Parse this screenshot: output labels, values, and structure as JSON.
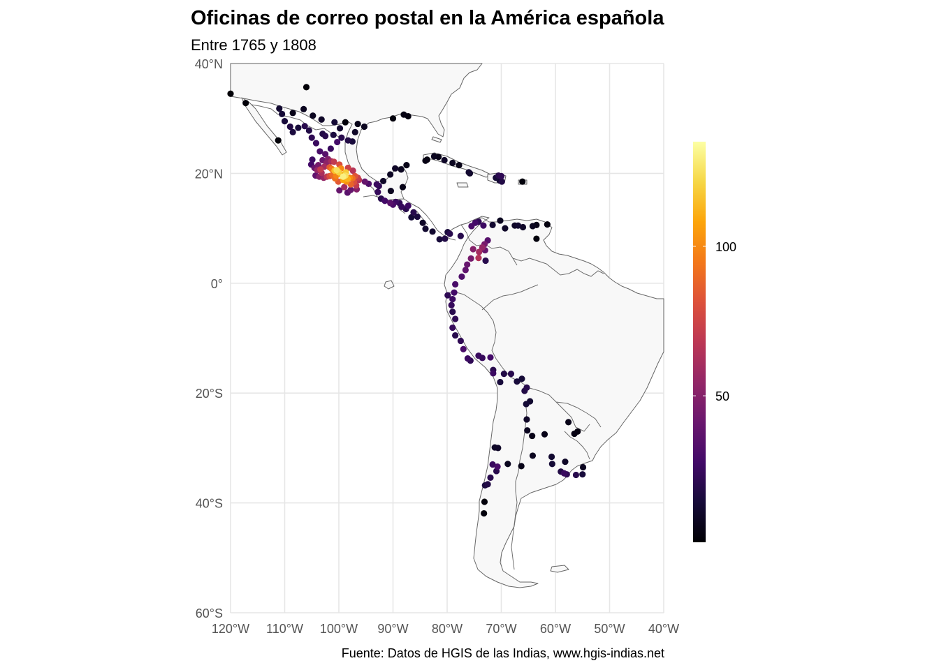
{
  "chart_data": {
    "type": "scatter",
    "title": "Oficinas de correo postal en la América española",
    "subtitle": "Entre 1765 y 1808",
    "caption": "Fuente: Datos de HGIS de las Indias, www.hgis-indias.net",
    "xlim": [
      -120,
      -40
    ],
    "ylim": [
      -60,
      40
    ],
    "x_ticks": [
      -120,
      -110,
      -100,
      -90,
      -80,
      -70,
      -60,
      -50,
      -40
    ],
    "x_tick_labels": [
      "120°W",
      "110°W",
      "100°W",
      "90°W",
      "80°W",
      "70°W",
      "60°W",
      "50°W",
      "40°W"
    ],
    "y_ticks": [
      40,
      20,
      0,
      -20,
      -40,
      -60
    ],
    "y_tick_labels": [
      "40°N",
      "20°N",
      "0°",
      "20°S",
      "40°S",
      "60°S"
    ],
    "grid": true,
    "colorscale": "inferno",
    "color_range": [
      1,
      135
    ],
    "legend_ticks": [
      50,
      100
    ],
    "legend_tick_labels": [
      "50",
      "100"
    ],
    "legend_position": "right",
    "points": [
      [
        -120.0,
        34.5,
        2
      ],
      [
        -117.2,
        32.8,
        2
      ],
      [
        -106.0,
        35.7,
        2
      ],
      [
        -111.2,
        26.0,
        2
      ],
      [
        -111.0,
        31.8,
        12
      ],
      [
        -110.5,
        30.8,
        14
      ],
      [
        -110.0,
        29.5,
        15
      ],
      [
        -109.0,
        28.5,
        18
      ],
      [
        -108.5,
        27.5,
        16
      ],
      [
        -107.5,
        28.3,
        15
      ],
      [
        -106.3,
        28.6,
        20
      ],
      [
        -105.5,
        27.8,
        18
      ],
      [
        -105.0,
        26.5,
        22
      ],
      [
        -104.2,
        25.5,
        25
      ],
      [
        -103.5,
        24.0,
        30
      ],
      [
        -102.5,
        23.5,
        35
      ],
      [
        -101.5,
        24.5,
        25
      ],
      [
        -100.3,
        25.7,
        28
      ],
      [
        -99.5,
        26.5,
        20
      ],
      [
        -98.3,
        26.0,
        18
      ],
      [
        -97.5,
        25.8,
        15
      ],
      [
        -101.0,
        27.0,
        16
      ],
      [
        -100.8,
        29.3,
        14
      ],
      [
        -99.8,
        28.2,
        12
      ],
      [
        -98.8,
        29.3,
        3
      ],
      [
        -104.8,
        30.5,
        8
      ],
      [
        -103.2,
        29.8,
        10
      ],
      [
        -108.5,
        31.0,
        6
      ],
      [
        -106.5,
        31.7,
        8
      ],
      [
        -103.0,
        27.2,
        18
      ],
      [
        -102.5,
        26.8,
        20
      ],
      [
        -96.5,
        29.0,
        6
      ],
      [
        -95.3,
        28.5,
        8
      ],
      [
        -97.0,
        27.5,
        10
      ],
      [
        -90.0,
        30.0,
        3
      ],
      [
        -88.0,
        30.7,
        5
      ],
      [
        -87.2,
        30.4,
        4
      ],
      [
        -104.5,
        21.0,
        40
      ],
      [
        -104.0,
        20.6,
        55
      ],
      [
        -103.4,
        20.7,
        70
      ],
      [
        -102.7,
        21.2,
        60
      ],
      [
        -102.3,
        21.9,
        52
      ],
      [
        -101.7,
        21.1,
        85
      ],
      [
        -101.3,
        20.8,
        95
      ],
      [
        -100.8,
        20.5,
        115
      ],
      [
        -100.4,
        20.6,
        125
      ],
      [
        -100.0,
        20.2,
        120
      ],
      [
        -99.6,
        19.8,
        110
      ],
      [
        -99.2,
        19.4,
        130
      ],
      [
        -98.8,
        19.6,
        125
      ],
      [
        -98.4,
        19.0,
        112
      ],
      [
        -98.0,
        19.2,
        100
      ],
      [
        -97.5,
        19.1,
        92
      ],
      [
        -97.0,
        19.5,
        82
      ],
      [
        -96.5,
        19.2,
        72
      ],
      [
        -96.3,
        18.8,
        65
      ],
      [
        -97.2,
        18.4,
        80
      ],
      [
        -96.8,
        17.8,
        70
      ],
      [
        -97.8,
        18.0,
        88
      ],
      [
        -98.6,
        18.5,
        102
      ],
      [
        -99.2,
        18.8,
        108
      ],
      [
        -100.5,
        19.6,
        98
      ],
      [
        -101.2,
        19.7,
        90
      ],
      [
        -101.7,
        19.5,
        80
      ],
      [
        -102.2,
        19.4,
        68
      ],
      [
        -102.8,
        19.2,
        55
      ],
      [
        -103.6,
        19.4,
        50
      ],
      [
        -104.3,
        19.6,
        38
      ],
      [
        -103.2,
        20.1,
        62
      ],
      [
        -100.1,
        18.5,
        84
      ],
      [
        -99.0,
        17.5,
        60
      ],
      [
        -99.9,
        16.9,
        40
      ],
      [
        -98.4,
        16.5,
        36
      ],
      [
        -96.7,
        17.1,
        50
      ],
      [
        -95.2,
        18.5,
        40
      ],
      [
        -94.5,
        18.1,
        32
      ],
      [
        -93.0,
        18.0,
        25
      ],
      [
        -92.6,
        17.7,
        22
      ],
      [
        -101.4,
        22.2,
        60
      ],
      [
        -100.9,
        22.1,
        70
      ],
      [
        -102.0,
        22.6,
        48
      ],
      [
        -103.0,
        22.4,
        42
      ],
      [
        -99.6,
        20.9,
        100
      ],
      [
        -98.7,
        20.2,
        118
      ],
      [
        -99.9,
        21.6,
        80
      ],
      [
        -98.3,
        21.0,
        74
      ],
      [
        -97.4,
        20.5,
        66
      ],
      [
        -105.1,
        21.6,
        28
      ],
      [
        -104.9,
        22.5,
        26
      ],
      [
        -103.8,
        21.5,
        45
      ],
      [
        -100.7,
        19.1,
        92
      ],
      [
        -97.8,
        17.0,
        40
      ],
      [
        -92.8,
        16.6,
        24
      ],
      [
        -92.2,
        15.4,
        20
      ],
      [
        -91.5,
        15.0,
        28
      ],
      [
        -90.5,
        14.6,
        35
      ],
      [
        -90.0,
        14.3,
        30
      ],
      [
        -89.5,
        14.8,
        26
      ],
      [
        -88.8,
        14.6,
        22
      ],
      [
        -88.4,
        13.9,
        24
      ],
      [
        -87.6,
        13.5,
        20
      ],
      [
        -87.2,
        14.1,
        26
      ],
      [
        -86.2,
        12.9,
        20
      ],
      [
        -85.5,
        12.1,
        16
      ],
      [
        -86.6,
        12.0,
        14
      ],
      [
        -84.5,
        11.0,
        10
      ],
      [
        -84.0,
        9.9,
        12
      ],
      [
        -90.4,
        16.8,
        8
      ],
      [
        -88.2,
        17.5,
        6
      ],
      [
        -89.6,
        20.9,
        10
      ],
      [
        -88.5,
        20.7,
        8
      ],
      [
        -87.5,
        21.5,
        6
      ],
      [
        -90.5,
        19.8,
        9
      ],
      [
        -91.8,
        18.6,
        10
      ],
      [
        -82.4,
        23.1,
        8
      ],
      [
        -81.6,
        23.0,
        6
      ],
      [
        -80.5,
        22.4,
        10
      ],
      [
        -79.0,
        21.9,
        8
      ],
      [
        -77.8,
        21.5,
        6
      ],
      [
        -76.0,
        20.2,
        12
      ],
      [
        -75.8,
        20.0,
        10
      ],
      [
        -84.0,
        22.3,
        5
      ],
      [
        -83.7,
        22.5,
        4
      ],
      [
        -70.0,
        19.5,
        22
      ],
      [
        -70.5,
        19.6,
        20
      ],
      [
        -69.9,
        18.5,
        18
      ],
      [
        -71.0,
        19.2,
        14
      ],
      [
        -70.3,
        18.7,
        12
      ],
      [
        -66.1,
        18.5,
        3
      ],
      [
        -82.7,
        9.4,
        12
      ],
      [
        -81.4,
        8.0,
        15
      ],
      [
        -80.4,
        8.1,
        18
      ],
      [
        -79.5,
        9.0,
        20
      ],
      [
        -79.9,
        9.3,
        15
      ],
      [
        -77.5,
        8.6,
        20
      ],
      [
        -75.5,
        10.4,
        30
      ],
      [
        -74.8,
        11.0,
        28
      ],
      [
        -74.2,
        11.2,
        22
      ],
      [
        -73.3,
        10.5,
        26
      ],
      [
        -72.5,
        7.8,
        35
      ],
      [
        -73.1,
        7.1,
        45
      ],
      [
        -73.5,
        6.5,
        55
      ],
      [
        -74.1,
        5.7,
        60
      ],
      [
        -74.2,
        4.6,
        65
      ],
      [
        -75.2,
        6.2,
        50
      ],
      [
        -75.6,
        4.5,
        45
      ],
      [
        -76.3,
        3.4,
        40
      ],
      [
        -76.6,
        2.4,
        38
      ],
      [
        -77.3,
        1.2,
        32
      ],
      [
        -78.5,
        -0.2,
        30
      ],
      [
        -78.7,
        -1.7,
        28
      ],
      [
        -79.0,
        -2.9,
        26
      ],
      [
        -79.9,
        -2.2,
        22
      ],
      [
        -79.2,
        -4.0,
        24
      ],
      [
        -79.0,
        -5.2,
        20
      ],
      [
        -78.5,
        -6.5,
        22
      ],
      [
        -79.0,
        -8.1,
        24
      ],
      [
        -78.5,
        -9.5,
        20
      ],
      [
        -77.5,
        -10.5,
        22
      ],
      [
        -77.0,
        -12.0,
        30
      ],
      [
        -76.2,
        -13.7,
        26
      ],
      [
        -75.7,
        -14.1,
        22
      ],
      [
        -74.2,
        -13.2,
        25
      ],
      [
        -73.5,
        -13.6,
        24
      ],
      [
        -72.0,
        -13.5,
        28
      ],
      [
        -71.5,
        -15.8,
        20
      ],
      [
        -71.5,
        -16.4,
        26
      ],
      [
        -70.2,
        -18.0,
        15
      ],
      [
        -69.5,
        -16.5,
        18
      ],
      [
        -68.2,
        -16.5,
        20
      ],
      [
        -67.1,
        -17.9,
        15
      ],
      [
        -66.2,
        -17.4,
        14
      ],
      [
        -65.3,
        -19.0,
        20
      ],
      [
        -65.7,
        -19.6,
        18
      ],
      [
        -64.7,
        -21.5,
        12
      ],
      [
        -65.4,
        -22.0,
        14
      ],
      [
        -65.3,
        -24.8,
        10
      ],
      [
        -65.2,
        -26.8,
        8
      ],
      [
        -64.3,
        -27.8,
        6
      ],
      [
        -64.2,
        -31.4,
        8
      ],
      [
        -62.0,
        -27.5,
        6
      ],
      [
        -66.3,
        -33.3,
        6
      ],
      [
        -68.8,
        -32.9,
        8
      ],
      [
        -70.6,
        -30.0,
        10
      ],
      [
        -71.2,
        -29.9,
        10
      ],
      [
        -70.7,
        -33.4,
        30
      ],
      [
        -71.6,
        -33.0,
        25
      ],
      [
        -70.9,
        -34.2,
        20
      ],
      [
        -72.0,
        -35.4,
        20
      ],
      [
        -72.5,
        -36.6,
        18
      ],
      [
        -73.0,
        -36.8,
        16
      ],
      [
        -73.1,
        -39.8,
        3
      ],
      [
        -73.2,
        -41.9,
        3
      ],
      [
        -58.4,
        -34.6,
        25
      ],
      [
        -57.9,
        -34.8,
        22
      ],
      [
        -59.0,
        -34.3,
        18
      ],
      [
        -60.6,
        -32.9,
        14
      ],
      [
        -60.7,
        -31.6,
        12
      ],
      [
        -58.2,
        -32.5,
        10
      ],
      [
        -56.2,
        -34.9,
        20
      ],
      [
        -55.0,
        -34.8,
        15
      ],
      [
        -54.9,
        -33.5,
        8
      ],
      [
        -57.6,
        -25.3,
        6
      ],
      [
        -56.5,
        -27.4,
        5
      ],
      [
        -55.9,
        -27.0,
        4
      ],
      [
        -67.5,
        10.5,
        10
      ],
      [
        -66.9,
        10.5,
        12
      ],
      [
        -66.0,
        10.2,
        10
      ],
      [
        -64.2,
        10.4,
        8
      ],
      [
        -63.5,
        10.6,
        6
      ],
      [
        -61.5,
        10.7,
        4
      ],
      [
        -63.5,
        8.1,
        3
      ],
      [
        -69.3,
        10.0,
        10
      ],
      [
        -71.6,
        10.6,
        12
      ],
      [
        -70.2,
        11.4,
        8
      ],
      [
        -72.9,
        4.1,
        20
      ],
      [
        -73.0,
        6.0,
        40
      ]
    ]
  }
}
